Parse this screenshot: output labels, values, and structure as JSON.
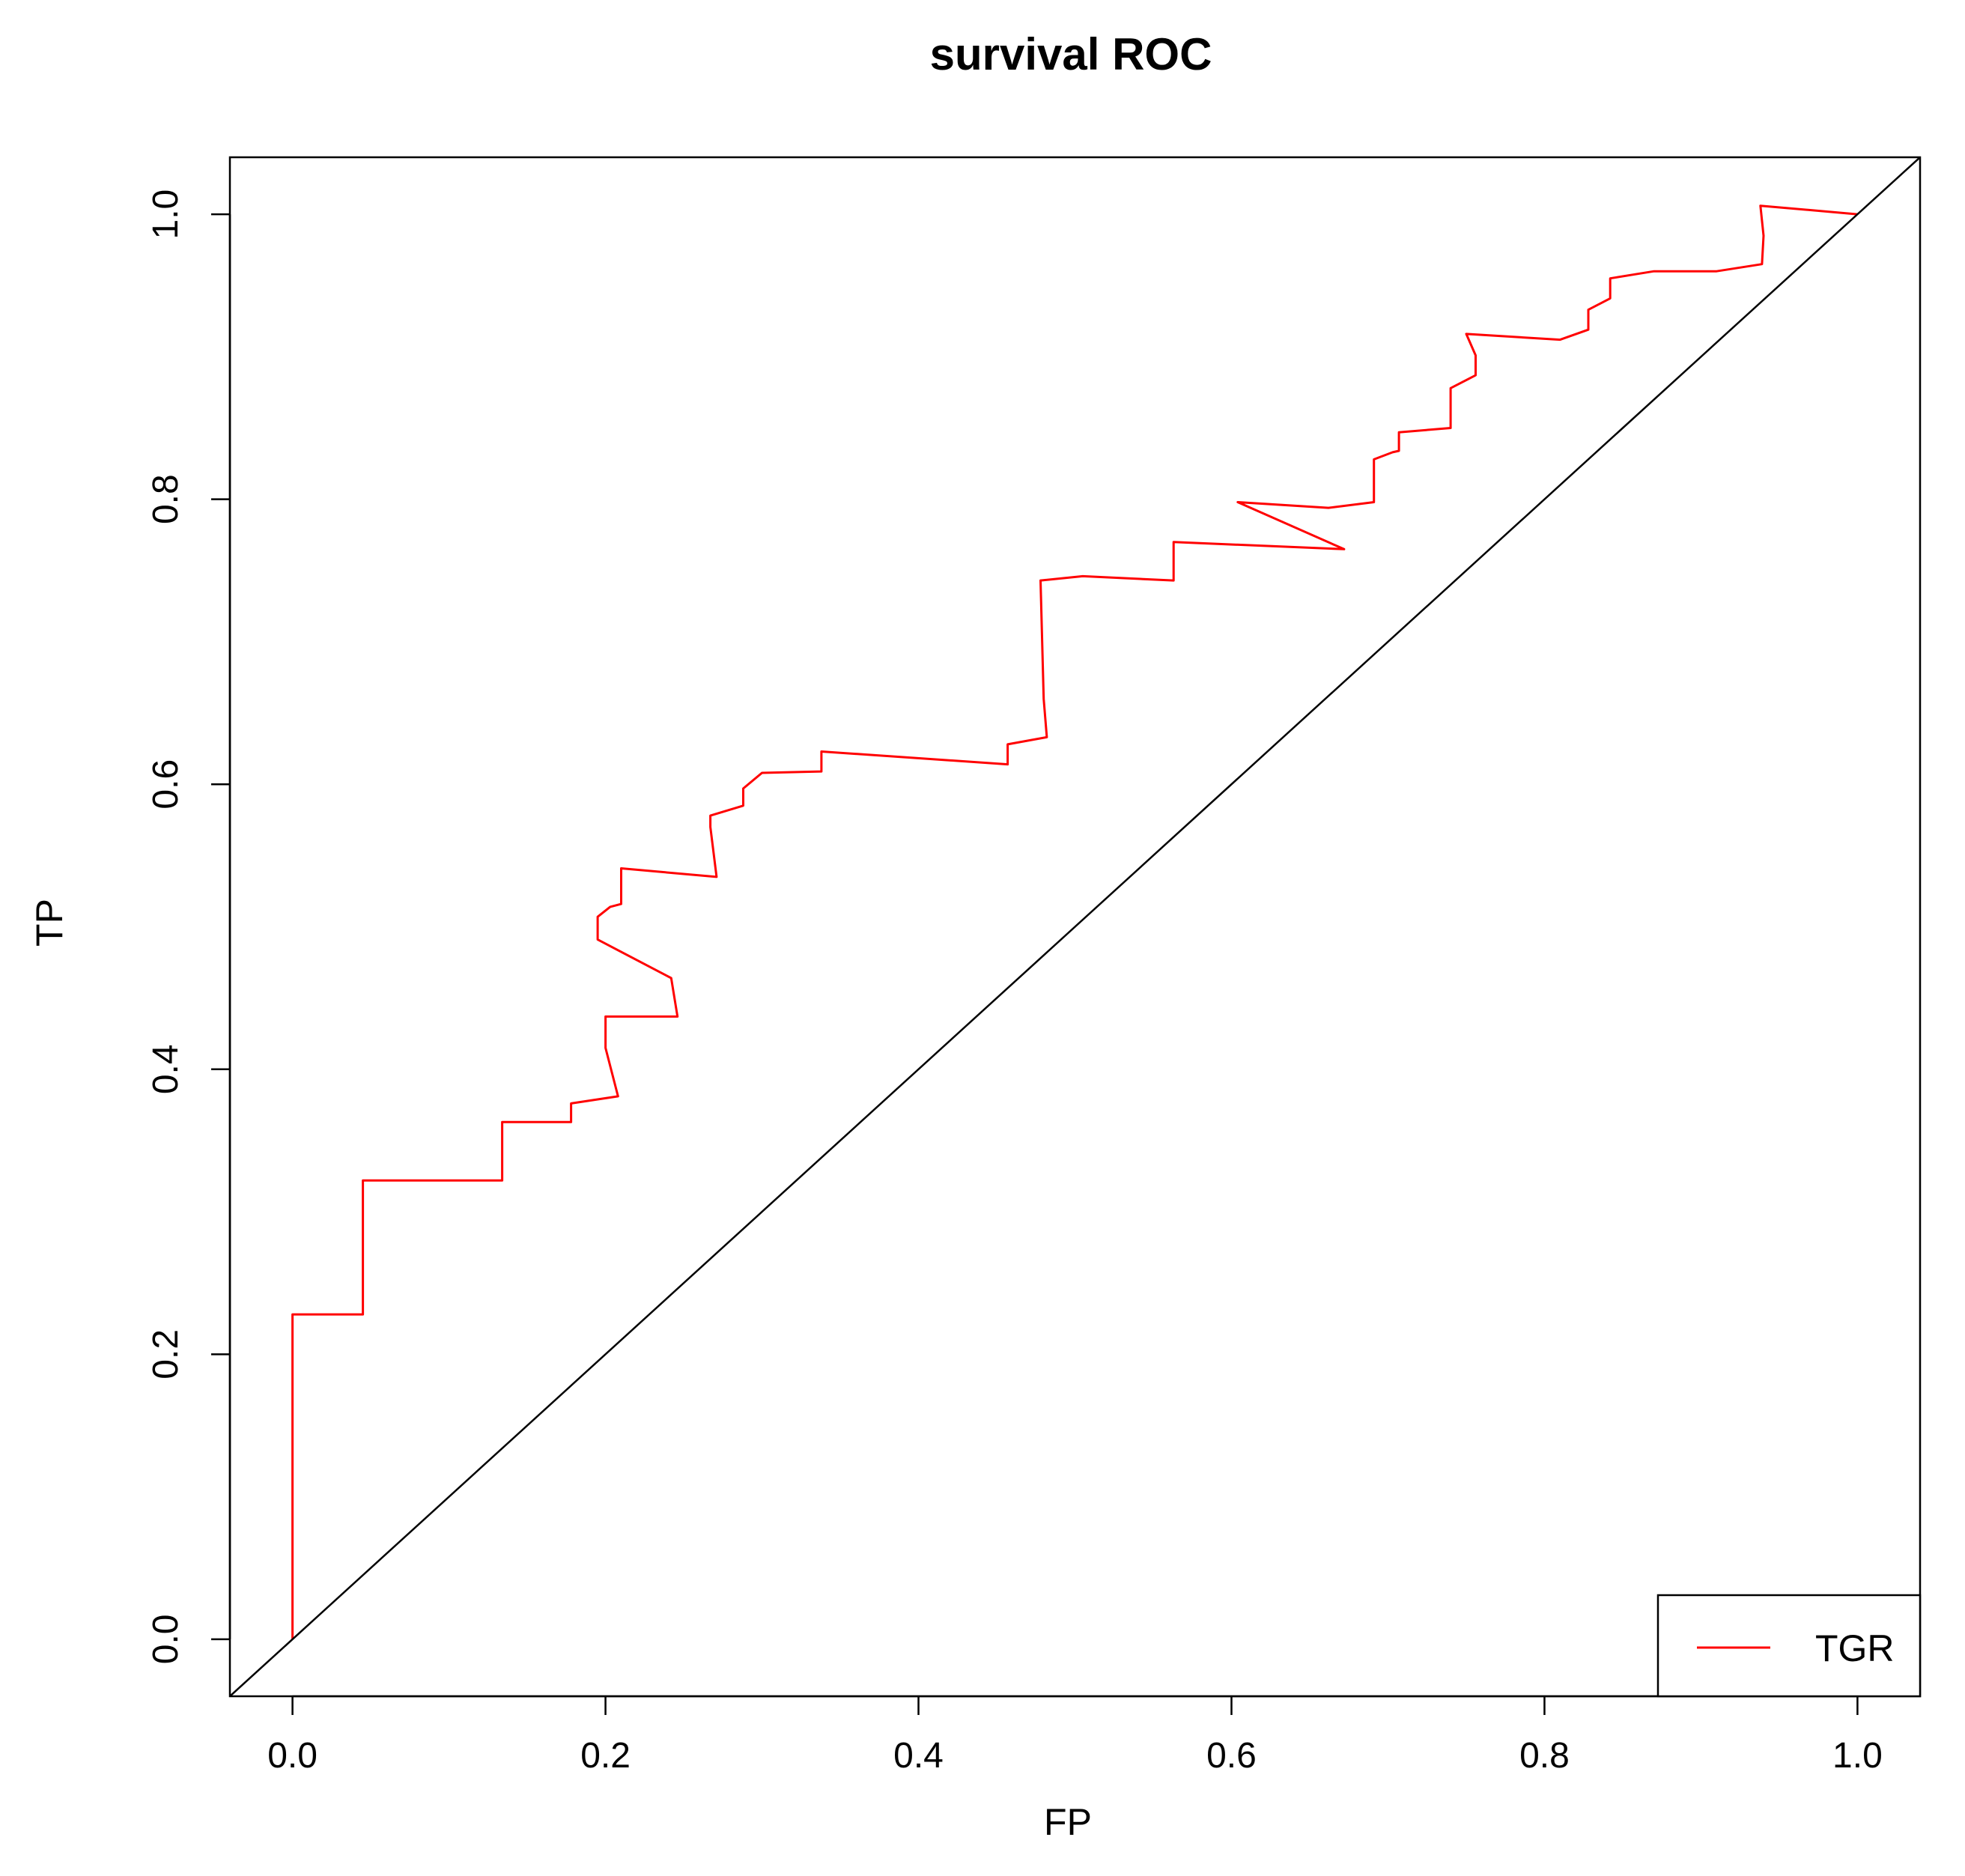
{
  "chart_data": {
    "type": "line",
    "title": "survival ROC",
    "xlabel": "FP",
    "ylabel": "TP",
    "xlim": [
      -0.04,
      1.04
    ],
    "ylim": [
      -0.04,
      1.04
    ],
    "x_ticks": [
      "0.0",
      "0.2",
      "0.4",
      "0.6",
      "0.8",
      "1.0"
    ],
    "y_ticks": [
      "0.0",
      "0.2",
      "0.4",
      "0.6",
      "0.8",
      "1.0"
    ],
    "grid": false,
    "legend": {
      "position": "bottom-right",
      "entries": [
        "TGR"
      ]
    },
    "series": [
      {
        "name": "TGR",
        "color": "#ff0000",
        "x": [
          0.0,
          0.0,
          0.045,
          0.045,
          0.134,
          0.134,
          0.178,
          0.178,
          0.208,
          0.2,
          0.2,
          0.246,
          0.242,
          0.195,
          0.195,
          0.203,
          0.21,
          0.21,
          0.271,
          0.267,
          0.267,
          0.288,
          0.288,
          0.3,
          0.338,
          0.338,
          0.457,
          0.457,
          0.482,
          0.48,
          0.478,
          0.478,
          0.505,
          0.563,
          0.563,
          0.672,
          0.604,
          0.662,
          0.691,
          0.691,
          0.703,
          0.707,
          0.707,
          0.74,
          0.74,
          0.756,
          0.756,
          0.75,
          0.81,
          0.828,
          0.828,
          0.842,
          0.842,
          0.87,
          0.91,
          0.939,
          0.94,
          0.938,
          1.0
        ],
        "y": [
          0.0,
          0.228,
          0.228,
          0.322,
          0.322,
          0.363,
          0.363,
          0.376,
          0.381,
          0.415,
          0.437,
          0.437,
          0.464,
          0.491,
          0.507,
          0.514,
          0.516,
          0.541,
          0.535,
          0.57,
          0.578,
          0.585,
          0.597,
          0.608,
          0.609,
          0.623,
          0.614,
          0.628,
          0.633,
          0.66,
          0.743,
          0.743,
          0.746,
          0.743,
          0.77,
          0.765,
          0.798,
          0.794,
          0.798,
          0.828,
          0.833,
          0.834,
          0.847,
          0.85,
          0.878,
          0.887,
          0.901,
          0.916,
          0.912,
          0.919,
          0.933,
          0.941,
          0.955,
          0.96,
          0.96,
          0.965,
          0.985,
          1.006,
          1.0
        ]
      },
      {
        "name": "",
        "color": "#000000",
        "x": [
          -0.04,
          1.04
        ],
        "y": [
          -0.04,
          1.04
        ]
      }
    ]
  }
}
